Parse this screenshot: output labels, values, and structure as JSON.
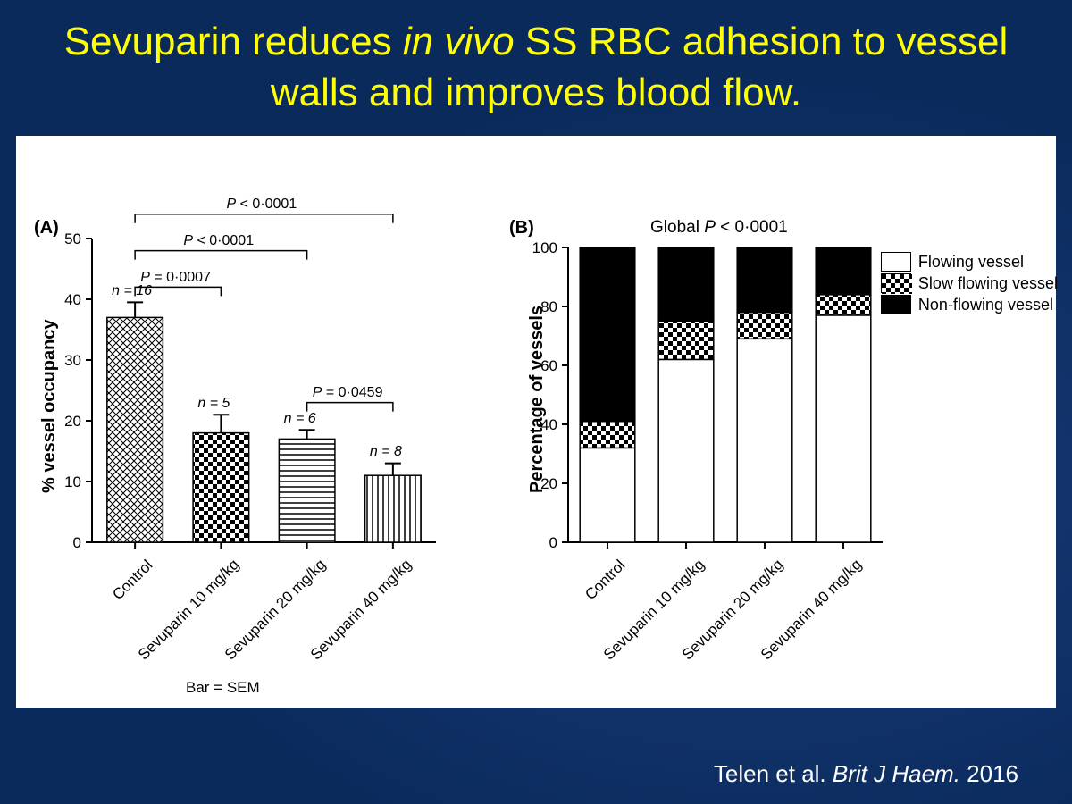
{
  "title": {
    "pre": "Sevuparin reduces ",
    "italic": "in vivo",
    "post": " SS RBC adhesion to vessel walls and improves blood flow."
  },
  "citation": {
    "authors": "Telen et al. ",
    "journal": "Brit J Haem.",
    "year": " 2016"
  },
  "panelA": {
    "label": "(A)",
    "ylabel": "% vessel occupancy",
    "ylim": [
      0,
      50
    ],
    "ytick_step": 10,
    "categories": [
      "Control",
      "Sevuparin 10 mg/kg",
      "Sevuparin 20 mg/kg",
      "Sevuparin 40 mg/kg"
    ],
    "values": [
      37,
      18,
      17,
      11
    ],
    "errors": [
      2.5,
      3,
      1.5,
      2
    ],
    "n": [
      "n = 16",
      "n = 5",
      "n = 6",
      "n = 8"
    ],
    "patterns": [
      "crosshatch",
      "checker",
      "hstripe",
      "vstripe"
    ],
    "pvalues": [
      {
        "text": "P < 0·0001",
        "from": 0,
        "to": 3,
        "y": 54
      },
      {
        "text": "P < 0·0001",
        "from": 0,
        "to": 2,
        "y": 48
      },
      {
        "text": "P = 0·0007",
        "from": 0,
        "to": 1,
        "y": 42
      },
      {
        "text": "P = 0·0459",
        "from": 2,
        "to": 3,
        "y": 23
      }
    ],
    "barsem": "Bar = SEM",
    "bar_width": 0.65,
    "label_fontsize": 17,
    "axis_color": "#000000",
    "background_color": "#ffffff"
  },
  "panelB": {
    "label": "(B)",
    "ylabel": "Percentage of vessels",
    "global_p": "Global P < 0·0001",
    "ylim": [
      0,
      100
    ],
    "ytick_step": 20,
    "categories": [
      "Control",
      "Sevuparin 10 mg/kg",
      "Sevuparin 20 mg/kg",
      "Sevuparin 40 mg/kg"
    ],
    "stacks": [
      {
        "flowing": 32,
        "slow": 9,
        "non": 59
      },
      {
        "flowing": 62,
        "slow": 13,
        "non": 25
      },
      {
        "flowing": 69,
        "slow": 9,
        "non": 22
      },
      {
        "flowing": 77,
        "slow": 7,
        "non": 16
      }
    ],
    "legend": [
      {
        "label": "Flowing vessel",
        "fill": "white"
      },
      {
        "label": "Slow flowing vessel",
        "fill": "checker"
      },
      {
        "label": "Non-flowing vessel",
        "fill": "black"
      }
    ],
    "bar_width": 0.7,
    "label_fontsize": 17,
    "axis_color": "#000000",
    "background_color": "#ffffff"
  },
  "colors": {
    "title": "#ffff00",
    "background": "#0a2a5c",
    "panel_bg": "#ffffff",
    "axis": "#000000",
    "citation": "#ffffff"
  }
}
